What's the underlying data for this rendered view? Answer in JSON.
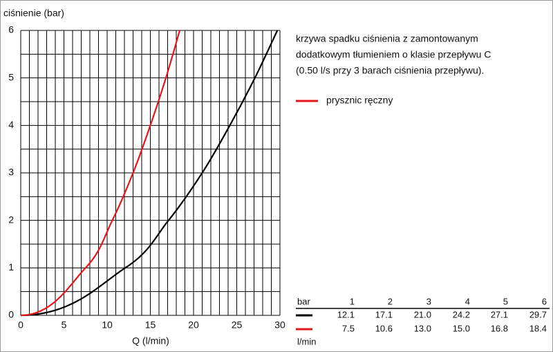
{
  "chart_data": {
    "type": "line",
    "y_label": "ciśnienie (bar)",
    "x_label": "Q (l/min)",
    "annotation": [
      "krzywa spadku ciśnienia z zamontowanym",
      "dodatkowym tłumieniem o klasie przepływu C",
      "(0.50 l/s przy 3 barach ciśnienia przepływu)."
    ],
    "xlim": [
      0,
      30
    ],
    "ylim": [
      0,
      6
    ],
    "xticks": [
      0,
      5,
      10,
      15,
      20,
      25,
      30
    ],
    "yticks": [
      0,
      1,
      2,
      3,
      4,
      5,
      6
    ],
    "xgrid": [
      0,
      1,
      2,
      3,
      4,
      5,
      6,
      7,
      8,
      9,
      10,
      11,
      12,
      13,
      14,
      15,
      16,
      17,
      18,
      19,
      20,
      21,
      22,
      23,
      24,
      25,
      26,
      27,
      28,
      29,
      30
    ],
    "ygrid": [
      0,
      0.5,
      1,
      1.5,
      2,
      2.5,
      3,
      3.5,
      4,
      4.5,
      5,
      5.5,
      6
    ],
    "grid": true,
    "series": [
      {
        "color": "#000000",
        "x": [
          0,
          12.1,
          17.1,
          21.0,
          24.2,
          27.1,
          29.7
        ],
        "x_labels": [
          null,
          "12.1",
          "17.1",
          "21.0",
          "24.2",
          "27.1",
          "29.7"
        ],
        "values": [
          0,
          1,
          2,
          3,
          4,
          5,
          6
        ]
      },
      {
        "name": "prysznic ręczny",
        "color": "#e8141b",
        "x": [
          0,
          7.5,
          10.6,
          13.0,
          15.0,
          16.8,
          18.4
        ],
        "x_labels": [
          null,
          "7.5",
          "10.6",
          "13.0",
          "15.0",
          "16.8",
          "18.4"
        ],
        "values": [
          0,
          1,
          2,
          3,
          4,
          5,
          6
        ]
      }
    ],
    "table": {
      "header": "bar",
      "unit": "l/min"
    }
  }
}
